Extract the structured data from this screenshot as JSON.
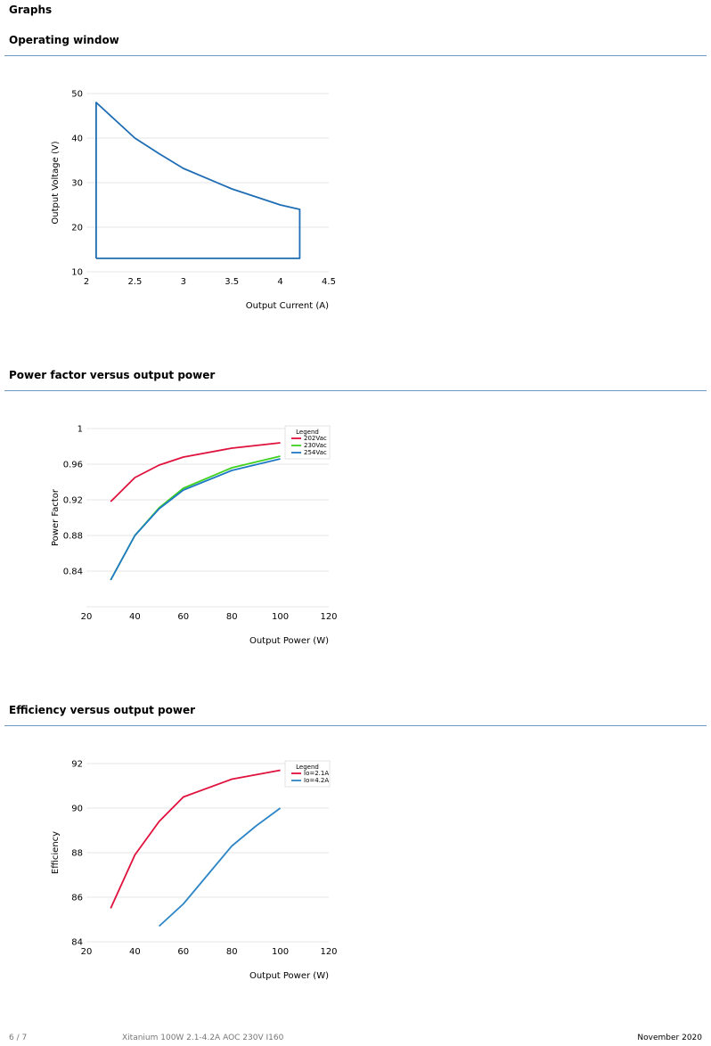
{
  "page": {
    "heading": "Graphs"
  },
  "sections": [
    {
      "title": "Operating window"
    },
    {
      "title": "Power factor versus output power"
    },
    {
      "title": "Efficiency versus output power"
    }
  ],
  "chart_data": [
    {
      "type": "line",
      "title": "Operating window",
      "xlabel": "Output Current (A)",
      "ylabel": "Output Voltage (V)",
      "xlim": [
        2,
        4.5
      ],
      "ylim": [
        10,
        50
      ],
      "xticks": [
        2,
        2.5,
        3,
        3.5,
        4,
        4.5
      ],
      "yticks": [
        10,
        20,
        30,
        40,
        50
      ],
      "xtick_labels": [
        "2",
        "2.5",
        "3",
        "3.5",
        "4",
        "4.5"
      ],
      "ytick_labels": [
        "10",
        "20",
        "30",
        "40",
        "50"
      ],
      "grid": true,
      "series": [
        {
          "color": "#1f6db5",
          "x": [
            2.1,
            2.1,
            2.5,
            2.75,
            3.0,
            3.5,
            4.0,
            4.2,
            4.2,
            2.1
          ],
          "y": [
            13,
            48,
            40,
            36.5,
            33.2,
            28.6,
            25,
            24,
            13,
            13
          ]
        }
      ]
    },
    {
      "type": "line",
      "title": "Power factor versus output power",
      "xlabel": "Output Power (W)",
      "ylabel": "Power Factor",
      "xlim": [
        20,
        120
      ],
      "ylim": [
        0.8,
        1.0
      ],
      "xticks": [
        20,
        40,
        60,
        80,
        100,
        120
      ],
      "yticks": [
        0.84,
        0.88,
        0.92,
        0.96,
        1.0
      ],
      "xtick_labels": [
        "20",
        "40",
        "60",
        "80",
        "100",
        "120"
      ],
      "ytick_labels": [
        "0.84",
        "0.88",
        "0.92",
        "0.96",
        "1"
      ],
      "grid": true,
      "legend_title": "Legend",
      "legend_position": "top-right",
      "series": [
        {
          "name": "202Vac",
          "color": "#e0113c",
          "x": [
            30,
            40,
            50,
            60,
            80,
            100
          ],
          "y": [
            0.918,
            0.945,
            0.959,
            0.968,
            0.978,
            0.984
          ]
        },
        {
          "name": "230Vac",
          "color": "#3ed21e",
          "x": [
            30,
            40,
            50,
            60,
            80,
            100
          ],
          "y": [
            0.83,
            0.88,
            0.911,
            0.933,
            0.956,
            0.969
          ]
        },
        {
          "name": "254Vac",
          "color": "#1f7ac4",
          "x": [
            30,
            40,
            50,
            60,
            80,
            100
          ],
          "y": [
            0.83,
            0.88,
            0.91,
            0.931,
            0.953,
            0.966
          ]
        }
      ]
    },
    {
      "type": "line",
      "title": "Efficiency versus output power",
      "xlabel": "Output Power (W)",
      "ylabel": "Efficiency",
      "xlim": [
        20,
        120
      ],
      "ylim": [
        84,
        92
      ],
      "xticks": [
        20,
        40,
        60,
        80,
        100,
        120
      ],
      "yticks": [
        84,
        86,
        88,
        90,
        92
      ],
      "xtick_labels": [
        "20",
        "40",
        "60",
        "80",
        "100",
        "120"
      ],
      "ytick_labels": [
        "84",
        "86",
        "88",
        "90",
        "92"
      ],
      "grid": true,
      "legend_title": "Legend",
      "legend_position": "top-right",
      "series": [
        {
          "name": "Io=2.1A",
          "color": "#e0113c",
          "x": [
            30,
            40,
            50,
            60,
            80,
            100
          ],
          "y": [
            85.5,
            87.9,
            89.4,
            90.5,
            91.3,
            91.7
          ]
        },
        {
          "name": "Io=4.2A",
          "color": "#2f86c6",
          "x": [
            50,
            60,
            70,
            80,
            90,
            100
          ],
          "y": [
            84.7,
            85.7,
            87.0,
            88.3,
            89.2,
            90.0
          ]
        }
      ]
    }
  ],
  "footer": {
    "page": "6 / 7",
    "product": "Xitanium 100W 2.1-4.2A AOC 230V I160",
    "date": "November 2020"
  }
}
